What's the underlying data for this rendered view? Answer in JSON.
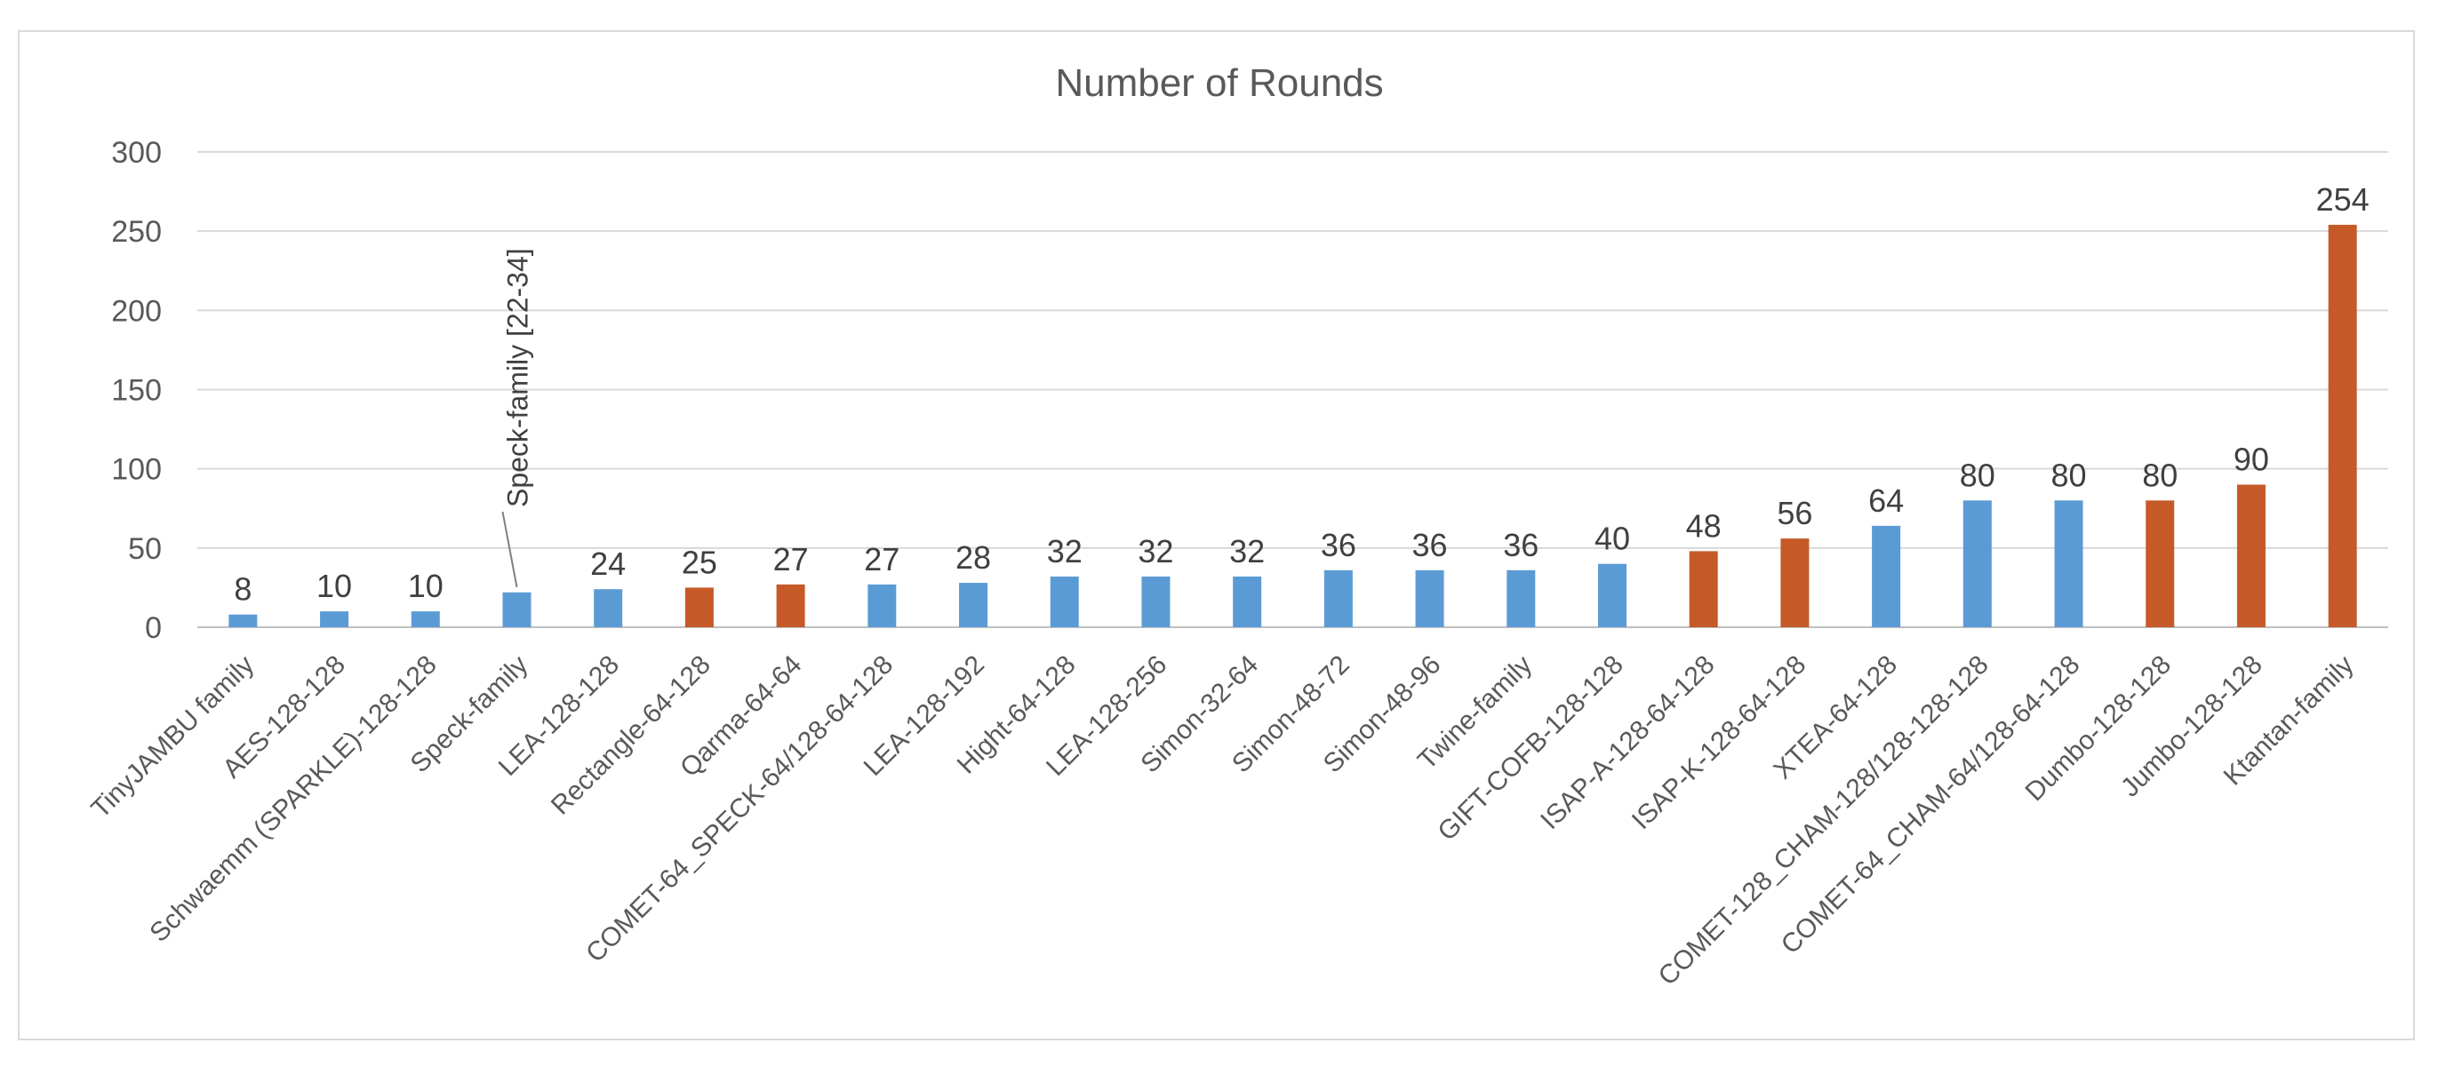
{
  "chart_data": {
    "type": "bar",
    "title": "Number of Rounds",
    "xlabel": "",
    "ylabel": "",
    "ylim": [
      0,
      300
    ],
    "yticks": [
      0,
      50,
      100,
      150,
      200,
      250,
      300
    ],
    "grid": true,
    "categories": [
      "TinyJAMBU family",
      "AES-128-128",
      "Schwaemm (SPARKLE)-128-128",
      "Speck-family",
      "LEA-128-128",
      "Rectangle-64-128",
      "Qarma-64-64",
      "COMET-64_SPECK-64/128-64-128",
      "LEA-128-192",
      "Hight-64-128",
      "LEA-128-256",
      "Simon-32-64",
      "Simon-48-72",
      "Simon-48-96",
      "Twine-family",
      "GIFT-COFB-128-128",
      "ISAP-A-128-64-128",
      "ISAP-K-128-64-128",
      "XTEA-64-128",
      "COMET-128_CHAM-128/128-128-128",
      "COMET-64_CHAM-64/128-64-128",
      "Dumbo-128-128",
      "Jumbo-128-128",
      "Ktantan-family"
    ],
    "values": [
      8,
      10,
      10,
      22,
      24,
      25,
      27,
      27,
      28,
      32,
      32,
      32,
      36,
      36,
      36,
      40,
      48,
      56,
      64,
      80,
      80,
      80,
      90,
      254
    ],
    "data_labels": [
      "8",
      "10",
      "10",
      "",
      "24",
      "25",
      "27",
      "27",
      "28",
      "32",
      "32",
      "32",
      "36",
      "36",
      "36",
      "40",
      "48",
      "56",
      "64",
      "80",
      "80",
      "80",
      "90",
      "254"
    ],
    "bar_groups": [
      "blue",
      "blue",
      "blue",
      "blue",
      "blue",
      "orange",
      "orange",
      "blue",
      "blue",
      "blue",
      "blue",
      "blue",
      "blue",
      "blue",
      "blue",
      "blue",
      "orange",
      "orange",
      "blue",
      "blue",
      "blue",
      "orange",
      "orange",
      "orange"
    ],
    "colors": {
      "blue": "#5b9bd5",
      "orange": "#c55a28"
    },
    "annotation": {
      "text": "Speck-family [22-34]",
      "category_index": 3
    }
  }
}
